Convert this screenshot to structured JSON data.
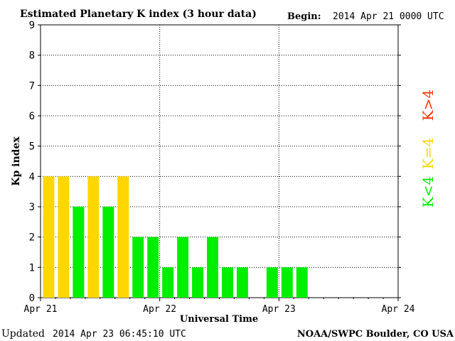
{
  "chart_data": {
    "type": "bar",
    "title": "Estimated Planetary K index (3 hour data)",
    "begin_label": "Begin:",
    "begin_value": "2014 Apr 21 0000 UTC",
    "xlabel": "Universal Time",
    "ylabel": "Kp index",
    "ylim": [
      0,
      9
    ],
    "yticks": [
      "0",
      "1",
      "2",
      "3",
      "4",
      "5",
      "6",
      "7",
      "8",
      "9"
    ],
    "xticks": [
      "Apr 21",
      "Apr 22",
      "Apr 23",
      "Apr 24"
    ],
    "bars_per_day": 8,
    "values": [
      4,
      4,
      3,
      4,
      3,
      4,
      2,
      2,
      1,
      2,
      1,
      2,
      1,
      1,
      0,
      1,
      1,
      1
    ],
    "legend": [
      {
        "label": "K<4",
        "color": "#00ee00"
      },
      {
        "label": "K=4",
        "color": "#ffd700"
      },
      {
        "label": "K>4",
        "color": "#ff3300"
      }
    ],
    "colors": {
      "below": "#00ee00",
      "equal": "#ffd700",
      "above": "#ff3300"
    }
  },
  "footer": {
    "updated_label": "Updated",
    "updated_value": "2014 Apr 23 06:45:10 UTC",
    "source": "NOAA/SWPC Boulder, CO USA"
  }
}
